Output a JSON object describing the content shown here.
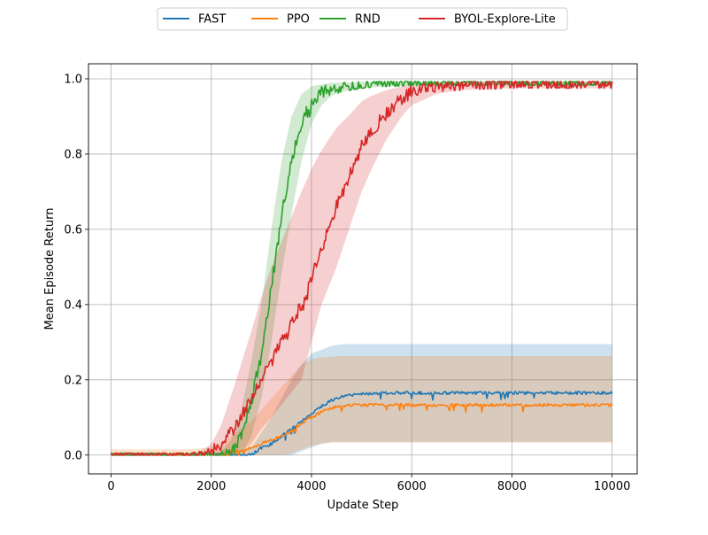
{
  "chart_data": {
    "type": "line",
    "title": "",
    "xlabel": "Update Step",
    "ylabel": "Mean Episode Return",
    "xlim": [
      -450,
      10500
    ],
    "ylim": [
      -0.05,
      1.04
    ],
    "xticks": [
      0,
      2000,
      4000,
      6000,
      8000,
      10000
    ],
    "xtick_labels": [
      "0",
      "2000",
      "4000",
      "6000",
      "8000",
      "10000"
    ],
    "yticks": [
      0.0,
      0.2,
      0.4,
      0.6,
      0.8,
      1.0
    ],
    "ytick_labels": [
      "0.0",
      "0.2",
      "0.4",
      "0.6",
      "0.8",
      "1.0"
    ],
    "grid": true,
    "legend_position": "top-center",
    "series": [
      {
        "name": "FAST",
        "color": "#1f77b4",
        "x": [
          0,
          500,
          1000,
          1500,
          2000,
          2500,
          2800,
          3000,
          3200,
          3400,
          3600,
          3800,
          4000,
          4200,
          4400,
          4600,
          4800,
          5000,
          5500,
          6000,
          7000,
          8000,
          9000,
          10000
        ],
        "y": [
          0.0,
          0.0,
          0.0,
          0.0,
          0.0,
          0.0,
          0.0,
          0.02,
          0.03,
          0.05,
          0.07,
          0.09,
          0.11,
          0.13,
          0.145,
          0.155,
          0.16,
          0.163,
          0.165,
          0.165,
          0.165,
          0.165,
          0.165,
          0.165
        ],
        "band_upper": [
          0.005,
          0.005,
          0.005,
          0.005,
          0.005,
          0.01,
          0.02,
          0.06,
          0.1,
          0.15,
          0.2,
          0.24,
          0.27,
          0.28,
          0.29,
          0.295,
          0.295,
          0.295,
          0.295,
          0.295,
          0.295,
          0.295,
          0.295,
          0.295
        ],
        "band_lower": [
          0.0,
          0.0,
          0.0,
          0.0,
          0.0,
          0.0,
          0.0,
          0.0,
          0.0,
          0.0,
          0.0,
          0.01,
          0.02,
          0.03,
          0.035,
          0.035,
          0.035,
          0.035,
          0.035,
          0.035,
          0.035,
          0.035,
          0.035,
          0.035
        ],
        "noise": 0.004
      },
      {
        "name": "PPO",
        "color": "#ff7f0e",
        "x": [
          0,
          500,
          1000,
          1500,
          2000,
          2200,
          2500,
          2800,
          3000,
          3200,
          3400,
          3600,
          3800,
          4000,
          4200,
          4400,
          4600,
          4800,
          5000,
          6000,
          7000,
          8000,
          9000,
          10000
        ],
        "y": [
          0.0,
          0.0,
          0.0,
          0.0,
          0.0,
          0.0,
          0.01,
          0.02,
          0.03,
          0.04,
          0.05,
          0.065,
          0.085,
          0.1,
          0.115,
          0.125,
          0.13,
          0.132,
          0.133,
          0.133,
          0.133,
          0.133,
          0.133,
          0.133
        ],
        "band_upper": [
          0.015,
          0.015,
          0.015,
          0.015,
          0.02,
          0.03,
          0.06,
          0.09,
          0.12,
          0.15,
          0.18,
          0.21,
          0.24,
          0.255,
          0.26,
          0.262,
          0.263,
          0.263,
          0.263,
          0.263,
          0.263,
          0.263,
          0.263,
          0.263
        ],
        "band_lower": [
          0.0,
          0.0,
          0.0,
          0.0,
          0.0,
          0.0,
          0.0,
          0.0,
          0.0,
          0.0,
          0.0,
          0.005,
          0.015,
          0.025,
          0.03,
          0.033,
          0.033,
          0.033,
          0.033,
          0.033,
          0.033,
          0.033,
          0.033,
          0.033
        ],
        "noise": 0.004
      },
      {
        "name": "RND",
        "color": "#2ca02c",
        "x": [
          0,
          500,
          1000,
          1500,
          2000,
          2200,
          2400,
          2600,
          2800,
          3000,
          3200,
          3400,
          3600,
          3800,
          4000,
          4200,
          4400,
          4600,
          5000,
          5500,
          6000,
          7000,
          8000,
          9000,
          10000
        ],
        "y": [
          0.0,
          0.0,
          0.0,
          0.0,
          0.0,
          0.0,
          0.005,
          0.05,
          0.14,
          0.27,
          0.45,
          0.63,
          0.78,
          0.88,
          0.94,
          0.965,
          0.975,
          0.98,
          0.985,
          0.987,
          0.988,
          0.988,
          0.988,
          0.988,
          0.988
        ],
        "band_upper": [
          0.005,
          0.005,
          0.005,
          0.005,
          0.005,
          0.01,
          0.04,
          0.12,
          0.25,
          0.4,
          0.6,
          0.78,
          0.9,
          0.96,
          0.98,
          0.985,
          0.99,
          0.99,
          0.992,
          0.993,
          0.993,
          0.993,
          0.993,
          0.993,
          0.993
        ],
        "band_lower": [
          0.0,
          0.0,
          0.0,
          0.0,
          0.0,
          0.0,
          0.0,
          0.0,
          0.05,
          0.15,
          0.3,
          0.48,
          0.64,
          0.78,
          0.88,
          0.93,
          0.955,
          0.965,
          0.975,
          0.98,
          0.982,
          0.983,
          0.983,
          0.983,
          0.983
        ],
        "noise": 0.018
      },
      {
        "name": "BYOL-Explore-Lite",
        "color": "#d62728",
        "x": [
          0,
          500,
          1000,
          1500,
          1800,
          2000,
          2200,
          2500,
          2800,
          3000,
          3200,
          3500,
          3800,
          4000,
          4200,
          4500,
          4800,
          5000,
          5200,
          5500,
          5800,
          6000,
          6500,
          7000,
          8000,
          9000,
          10000
        ],
        "y": [
          0.0,
          0.0,
          0.0,
          0.0,
          0.0,
          0.01,
          0.03,
          0.08,
          0.15,
          0.2,
          0.25,
          0.32,
          0.4,
          0.47,
          0.55,
          0.66,
          0.76,
          0.82,
          0.86,
          0.91,
          0.95,
          0.965,
          0.98,
          0.985,
          0.987,
          0.987,
          0.987
        ],
        "band_upper": [
          0.005,
          0.005,
          0.005,
          0.005,
          0.01,
          0.03,
          0.08,
          0.2,
          0.33,
          0.42,
          0.5,
          0.6,
          0.7,
          0.76,
          0.81,
          0.87,
          0.91,
          0.94,
          0.955,
          0.97,
          0.98,
          0.985,
          0.99,
          0.992,
          0.993,
          0.993,
          0.993
        ],
        "band_lower": [
          0.0,
          0.0,
          0.0,
          0.0,
          0.0,
          0.0,
          0.0,
          0.0,
          0.03,
          0.07,
          0.1,
          0.15,
          0.2,
          0.3,
          0.4,
          0.5,
          0.62,
          0.7,
          0.76,
          0.84,
          0.9,
          0.93,
          0.96,
          0.97,
          0.975,
          0.975,
          0.975
        ],
        "noise": 0.018
      }
    ]
  }
}
